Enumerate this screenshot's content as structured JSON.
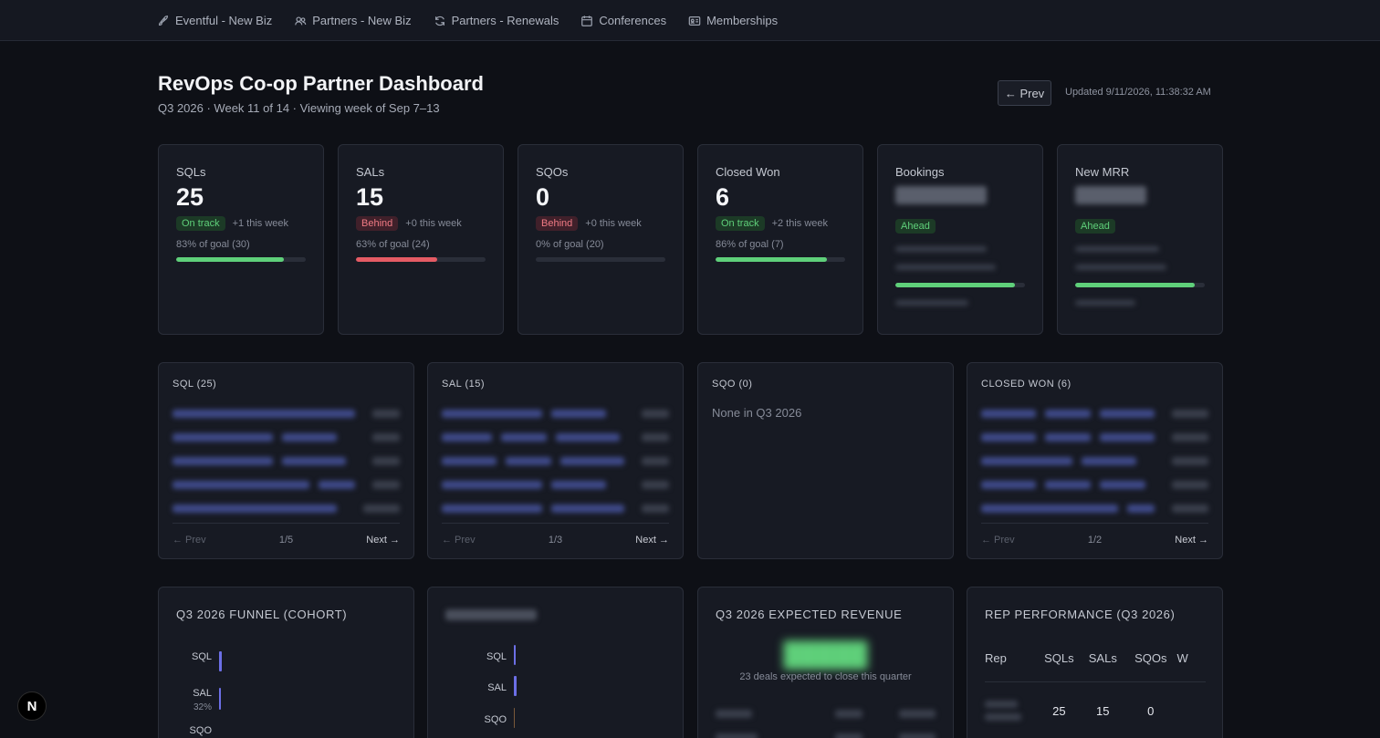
{
  "nav": {
    "items": [
      {
        "label": "Eventful - New Biz",
        "icon": "rocket-icon"
      },
      {
        "label": "Partners - New Biz",
        "icon": "users-icon"
      },
      {
        "label": "Partners - Renewals",
        "icon": "refresh-icon"
      },
      {
        "label": "Conferences",
        "icon": "calendar-icon"
      },
      {
        "label": "Memberships",
        "icon": "id-card-icon"
      }
    ]
  },
  "header": {
    "title": "RevOps Co-op Partner Dashboard",
    "subtitle": "Q3 2026 · Week 11 of 14 · Viewing week of Sep 7–13",
    "prev_label": "← Prev",
    "updated": "Updated 9/11/2026, 11:38:32 AM"
  },
  "kpis": [
    {
      "label": "SQLs",
      "value": "25",
      "status": "On track",
      "status_color": "#5fd07a",
      "delta": "+1 this week",
      "goal": "83% of goal (30)",
      "progress": 0.83,
      "bar_color": "#5fd07a"
    },
    {
      "label": "SALs",
      "value": "15",
      "status": "Behind",
      "status_color": "#f07a84",
      "delta": "+0 this week",
      "goal": "63% of goal (24)",
      "progress": 0.63,
      "bar_color": "#e55b64"
    },
    {
      "label": "SQOs",
      "value": "0",
      "status": "Behind",
      "status_color": "#f07a84",
      "delta": "+0 this week",
      "goal": "0% of goal (20)",
      "progress": 0.0,
      "bar_color": "#e55b64"
    },
    {
      "label": "Closed Won",
      "value": "6",
      "status": "On track",
      "status_color": "#5fd07a",
      "delta": "+2 this week",
      "goal": "86% of goal (7)",
      "progress": 0.86,
      "bar_color": "#5fd07a"
    },
    {
      "label": "Bookings",
      "status": "Ahead",
      "status_color": "#5fd07a",
      "progress": 0.92,
      "bar_color": "#5fd07a"
    },
    {
      "label": "New MRR",
      "status": "Ahead",
      "status_color": "#5fd07a",
      "progress": 0.92,
      "bar_color": "#5fd07a"
    }
  ],
  "lists": [
    {
      "title": "SQL (25)",
      "prev": "← Prev",
      "page": "1/5",
      "next": "Next →"
    },
    {
      "title": "SAL (15)",
      "prev": "← Prev",
      "page": "1/3",
      "next": "Next →"
    },
    {
      "title": "SQO (0)",
      "empty": "None in Q3 2026"
    },
    {
      "title": "CLOSED WON (6)",
      "prev": "← Prev",
      "page": "1/2",
      "next": "Next →"
    }
  ],
  "funnel": {
    "title": "Q3 2026 FUNNEL (COHORT)",
    "stages": [
      {
        "label": "SQL",
        "pct": ""
      },
      {
        "label": "SAL",
        "pct": "32%"
      },
      {
        "label": "SQO",
        "pct": ""
      }
    ]
  },
  "funnel2": {
    "stages": [
      {
        "label": "SQL"
      },
      {
        "label": "SAL"
      },
      {
        "label": "SQO"
      }
    ]
  },
  "expected": {
    "title": "Q3 2026 EXPECTED REVENUE",
    "subtitle": "23 deals expected to close this quarter"
  },
  "rep_performance": {
    "title": "REP PERFORMANCE (Q3 2026)",
    "columns": [
      "Rep",
      "SQLs",
      "SALs",
      "SQOs",
      "W"
    ],
    "rows": [
      {
        "sqls": "25",
        "sals": "15",
        "sqos": "0"
      }
    ]
  },
  "next_badge": "N"
}
